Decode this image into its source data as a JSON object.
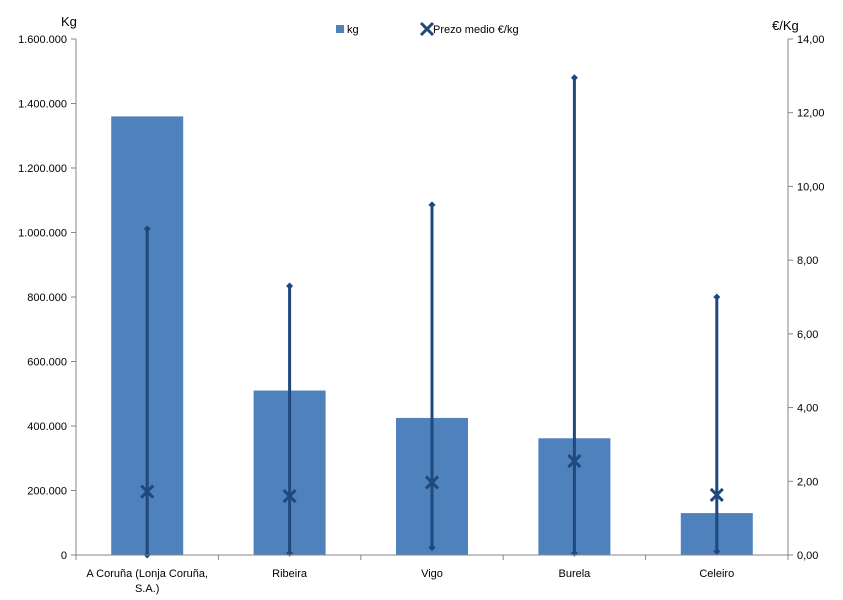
{
  "colors": {
    "bar": "#4F81BD",
    "price_line": "#1F497D",
    "axis": "#868686"
  },
  "chart_data": {
    "type": "bar",
    "title": "",
    "categories": [
      [
        "A Coruña (Lonja Coruña,",
        "S.A.)"
      ],
      [
        "Ribeira"
      ],
      [
        "Vigo"
      ],
      [
        "Burela"
      ],
      [
        "Celeiro"
      ]
    ],
    "category_names": [
      "A Coruña (Lonja Coruña, S.A.)",
      "Ribeira",
      "Vigo",
      "Burela",
      "Celeiro"
    ],
    "y_left": {
      "label": "Kg",
      "range": [
        0,
        1600000
      ],
      "ticks": [
        0,
        200000,
        400000,
        600000,
        800000,
        1000000,
        1200000,
        1400000,
        1600000
      ],
      "tick_labels": [
        "0",
        "200.000",
        "400.000",
        "600.000",
        "800.000",
        "1.000.000",
        "1.200.000",
        "1.400.000",
        "1.600.000"
      ]
    },
    "y_right": {
      "label": "€/Kg",
      "range": [
        0,
        14
      ],
      "ticks": [
        0,
        2,
        4,
        6,
        8,
        10,
        12,
        14
      ],
      "tick_labels": [
        "0,00",
        "2,00",
        "4,00",
        "6,00",
        "8,00",
        "10,00",
        "12,00",
        "14,00"
      ]
    },
    "series": [
      {
        "name": "kg",
        "type": "bar",
        "axis": "left",
        "values": [
          1360000,
          510000,
          425000,
          362000,
          130000
        ]
      },
      {
        "name": "Prezo medio €/kg",
        "type": "marker",
        "axis": "right",
        "marker": "x",
        "values": [
          1.72,
          1.6,
          1.97,
          2.55,
          1.63
        ]
      }
    ],
    "price_range": {
      "axis": "right",
      "marker": "diamond",
      "min": [
        0.0,
        0.05,
        0.2,
        0.05,
        0.1
      ],
      "max": [
        8.85,
        7.3,
        9.5,
        12.95,
        7.0
      ]
    },
    "legend": {
      "position": "top-center",
      "items": [
        "kg",
        "Prezo medio €/kg"
      ]
    },
    "grid": false
  }
}
